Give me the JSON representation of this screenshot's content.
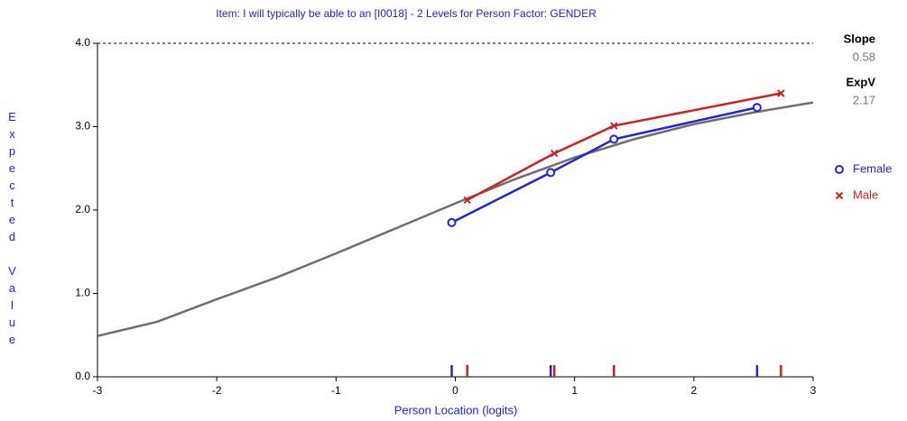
{
  "chart_data": {
    "type": "line",
    "title": "Item: I will typically be able to an [I0018] - 2 Levels for Person Factor: GENDER",
    "xlabel": "Person Location (logits)",
    "ylabel": "Expected Value",
    "xlim": [
      -3,
      3
    ],
    "xticks": [
      -3,
      -2,
      -1,
      0,
      1,
      2,
      3
    ],
    "ylim": [
      0,
      4
    ],
    "yticks": [
      {
        "value": 0,
        "label": "0.0"
      },
      {
        "value": 1,
        "label": "1.0"
      },
      {
        "value": 2,
        "label": "2.0"
      },
      {
        "value": 3,
        "label": "3.0"
      },
      {
        "value": 4,
        "label": "4.0"
      }
    ],
    "expected_curve": {
      "color": "#6e6e6e",
      "x": [
        -3,
        -2.5,
        -2,
        -1.5,
        -1,
        -0.5,
        0,
        0.5,
        1,
        1.5,
        2,
        2.5,
        3
      ],
      "values": [
        0.49,
        0.66,
        0.93,
        1.19,
        1.48,
        1.78,
        2.08,
        2.37,
        2.63,
        2.85,
        3.03,
        3.17,
        3.29
      ]
    },
    "series": [
      {
        "name": "Female",
        "color": "#2222dd",
        "marker": "circle",
        "x": [
          -0.03,
          0.8,
          1.33,
          2.53
        ],
        "values": [
          1.85,
          2.45,
          2.85,
          3.23
        ]
      },
      {
        "name": "Male",
        "color": "#cc2222",
        "marker": "x",
        "x": [
          0.1,
          0.83,
          1.33,
          2.73
        ],
        "values": [
          2.12,
          2.68,
          3.01,
          3.4
        ]
      }
    ],
    "stats": [
      {
        "label": "Slope",
        "value": 0.58
      },
      {
        "label": "ExpV",
        "value": 2.17
      }
    ]
  }
}
